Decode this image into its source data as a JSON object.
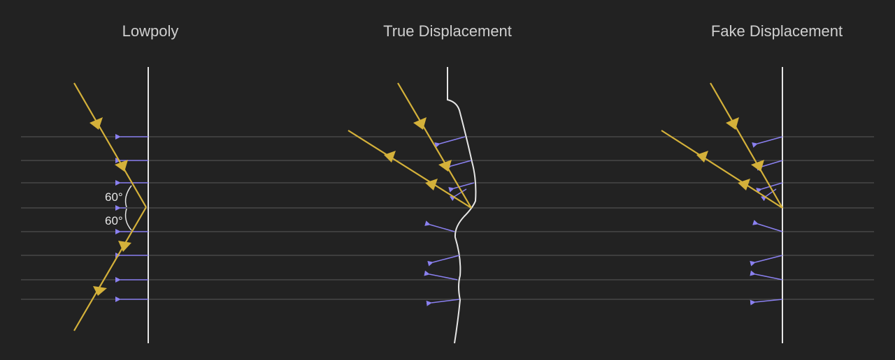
{
  "panels": [
    {
      "id": "lowpoly",
      "title": "Lowpoly"
    },
    {
      "id": "true-displacement",
      "title": "True Displacement"
    },
    {
      "id": "fake-displacement",
      "title": "Fake Displacement"
    }
  ],
  "annotations": {
    "angle_top": "60°",
    "angle_bottom": "60°"
  },
  "colors": {
    "background": "#222222",
    "surface": "#e6e6e6",
    "ray": "#d4b13a",
    "normal": "#8a80f0",
    "gridline": "#5a5a5a",
    "text": "#cfcfcf"
  }
}
